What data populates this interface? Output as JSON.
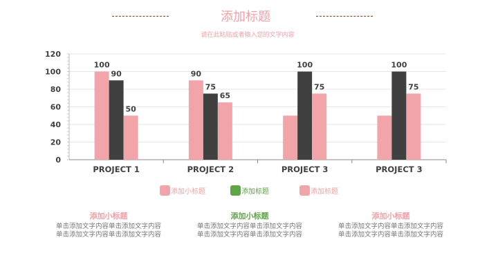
{
  "header": {
    "title": "添加标题",
    "subtitle": "请在此粘贴或者输入您的文字内容"
  },
  "colors": {
    "pink": "#f2a5a8",
    "dark": "#404040",
    "green": "#5ea544",
    "pinkText": "#f2a0a6"
  },
  "chart_data": {
    "type": "bar",
    "categories": [
      "PROJECT 1",
      "PROJECT 2",
      "PROJECT 3",
      "PROJECT 3"
    ],
    "series": [
      {
        "name": "添加小标题",
        "values": [
          100,
          90,
          50,
          50
        ],
        "labels": [
          "100",
          "90",
          null,
          null
        ]
      },
      {
        "name": "添加标题",
        "values": [
          90,
          75,
          100,
          100
        ],
        "labels": [
          "90",
          "75",
          "100",
          "100"
        ]
      },
      {
        "name": "添加标题",
        "values": [
          50,
          65,
          75,
          75
        ],
        "labels": [
          "50",
          "65",
          "75",
          "75"
        ]
      }
    ],
    "yticks": [
      "0",
      "20",
      "40",
      "60",
      "80",
      "100",
      "120"
    ],
    "ylim": [
      0,
      120
    ],
    "grid": true,
    "legend": "bottom"
  },
  "legend": [
    "添加小标题",
    "添加标题",
    "添加标题"
  ],
  "columns": [
    {
      "heading": "添加小标题",
      "lines": [
        "单击添加文字内容单击添加文字内容",
        "单击添加文字内容单击添加文字内容"
      ]
    },
    {
      "heading": "添加小标题",
      "lines": [
        "单击添加文字内容单击添加文字内容",
        "单击添加文字内容单击添加文字内容"
      ]
    },
    {
      "heading": "添加小标题",
      "lines": [
        "单击添加文字内容单击添加文字内容",
        "单击添加文字内容单击添加文字内容"
      ]
    }
  ]
}
